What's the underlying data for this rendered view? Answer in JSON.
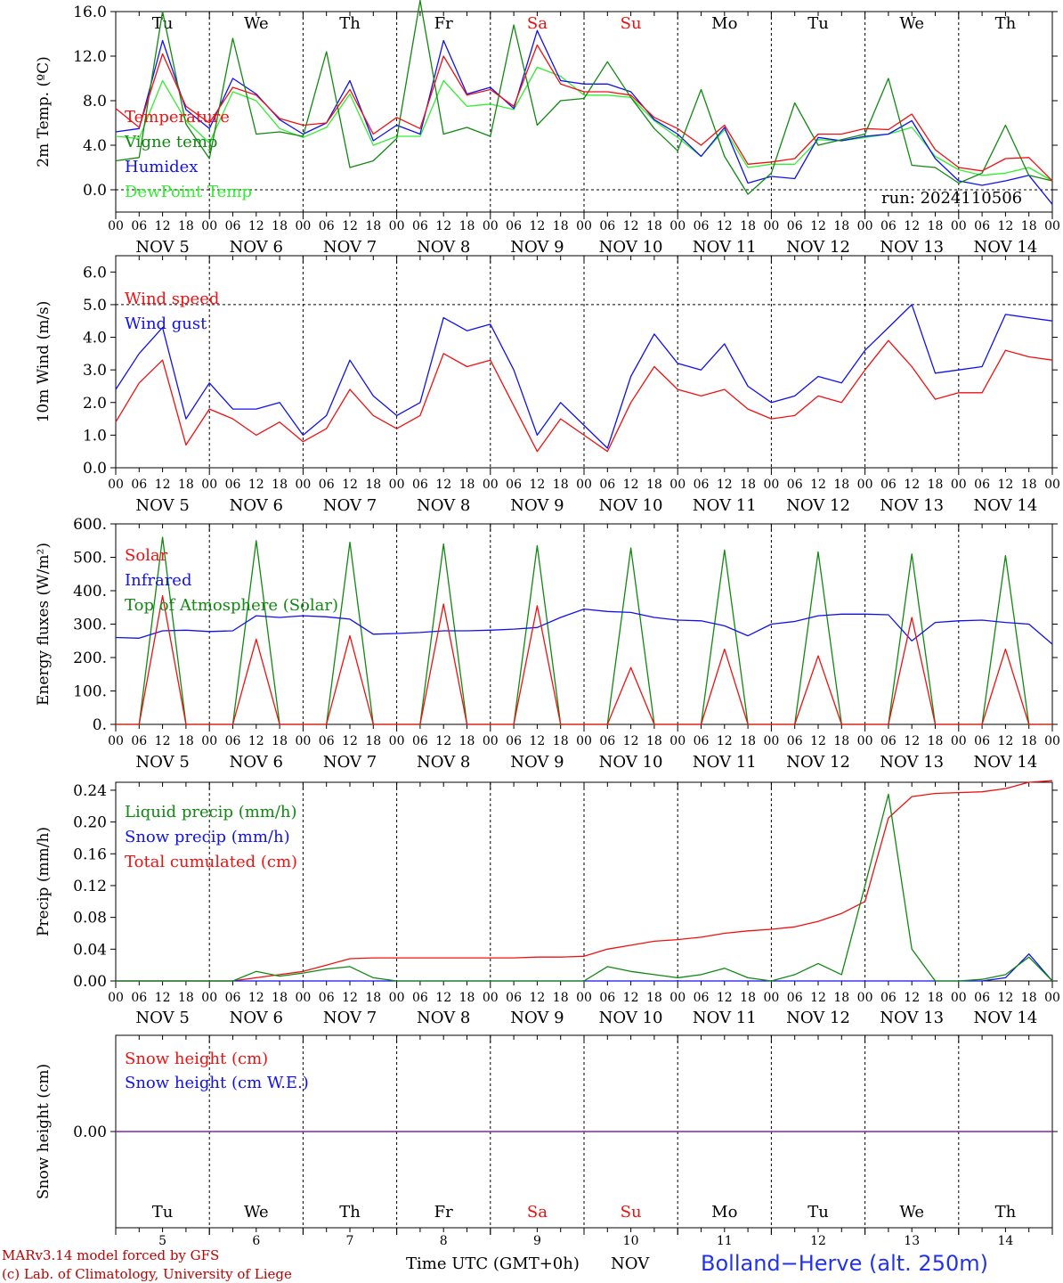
{
  "run_label": "run: 2024110506",
  "station": "Bolland−Herve (alt. 250m)",
  "footer": {
    "model": "MARv3.14 model forced by GFS",
    "credit": "(c) Lab. of Climatology, University of Liege"
  },
  "x_axis_title": "Time UTC (GMT+0h)",
  "x_axis_unit": "NOV",
  "hour_ticks": [
    "00",
    "06",
    "12",
    "18"
  ],
  "days": [
    {
      "abbr": "Tu",
      "date": "NOV  5",
      "num": "5",
      "weekend": false
    },
    {
      "abbr": "We",
      "date": "NOV  6",
      "num": "6",
      "weekend": false
    },
    {
      "abbr": "Th",
      "date": "NOV  7",
      "num": "7",
      "weekend": false
    },
    {
      "abbr": "Fr",
      "date": "NOV  8",
      "num": "8",
      "weekend": false
    },
    {
      "abbr": "Sa",
      "date": "NOV  9",
      "num": "9",
      "weekend": true
    },
    {
      "abbr": "Su",
      "date": "NOV 10",
      "num": "10",
      "weekend": true
    },
    {
      "abbr": "Mo",
      "date": "NOV 11",
      "num": "11",
      "weekend": false
    },
    {
      "abbr": "Tu",
      "date": "NOV 12",
      "num": "12",
      "weekend": false
    },
    {
      "abbr": "We",
      "date": "NOV 13",
      "num": "13",
      "weekend": false
    },
    {
      "abbr": "Th",
      "date": "NOV 14",
      "num": "14",
      "weekend": false
    }
  ],
  "colors": {
    "red": "#ee1111",
    "green": "#118811",
    "blue": "#1111ee",
    "lightgreen": "#33ee33",
    "purple": "#8822aa",
    "weekend": "#ee1111"
  },
  "chart_data": [
    {
      "type": "line",
      "ylabel": "2m Temp. (ºC)",
      "ylim": [
        -2,
        16
      ],
      "yticks": [
        0,
        4,
        8,
        12,
        16
      ],
      "yticklabels": [
        "0.0",
        "4.0",
        "8.0",
        "12.0",
        "16.0"
      ],
      "refline": 0,
      "x_hours": [
        0,
        6,
        12,
        18,
        24,
        30,
        36,
        42,
        48,
        54,
        60,
        66,
        72,
        78,
        84,
        90,
        96,
        102,
        108,
        114,
        120,
        126,
        132,
        138,
        144,
        150,
        156,
        162,
        168,
        174,
        180,
        186,
        192,
        198,
        204,
        210,
        216,
        222,
        228,
        234,
        240
      ],
      "series": [
        {
          "name": "Temperature",
          "color": "red",
          "values": [
            7.3,
            5.6,
            12.2,
            7.5,
            6.0,
            9.2,
            8.5,
            6.4,
            5.8,
            6.0,
            9.0,
            5.0,
            6.5,
            5.5,
            12.0,
            8.5,
            9.0,
            7.5,
            13.0,
            9.5,
            8.8,
            8.8,
            8.5,
            6.5,
            5.5,
            4.0,
            5.8,
            2.3,
            2.5,
            2.8,
            5.0,
            5.0,
            5.5,
            5.4,
            6.8,
            3.6,
            2.0,
            1.7,
            2.8,
            2.9,
            0.8
          ]
        },
        {
          "name": "Vigne temp",
          "color": "green",
          "values": [
            2.6,
            2.9,
            16.0,
            5.9,
            2.8,
            13.6,
            5.0,
            5.2,
            4.8,
            12.4,
            2.0,
            2.6,
            4.6,
            17.0,
            5.0,
            5.6,
            4.8,
            14.8,
            5.8,
            8.0,
            8.2,
            11.5,
            8.3,
            5.5,
            3.5,
            9.0,
            3.0,
            -0.4,
            1.5,
            7.8,
            4.0,
            4.5,
            5.0,
            10.0,
            2.2,
            2.0,
            0.6,
            1.5,
            5.8,
            1.3,
            0.8
          ]
        },
        {
          "name": "Humidex",
          "color": "blue",
          "values": [
            5.2,
            5.5,
            13.4,
            7.2,
            5.5,
            10.0,
            8.6,
            6.3,
            5.0,
            6.0,
            9.8,
            4.4,
            5.8,
            5.0,
            13.4,
            8.6,
            9.2,
            7.3,
            14.3,
            9.8,
            9.5,
            9.5,
            8.8,
            6.3,
            5.0,
            3.0,
            5.6,
            0.6,
            1.2,
            1.0,
            4.7,
            4.4,
            4.8,
            5.0,
            6.2,
            2.8,
            0.8,
            0.4,
            0.8,
            1.3,
            -1.3
          ]
        },
        {
          "name": "DewPoint Temp",
          "color": "lightgreen",
          "values": [
            4.8,
            4.6,
            9.8,
            6.2,
            4.2,
            8.8,
            8.0,
            5.5,
            4.7,
            5.6,
            8.6,
            4.0,
            4.8,
            4.8,
            9.8,
            7.5,
            7.7,
            7.2,
            11.0,
            10.2,
            8.5,
            8.5,
            8.3,
            6.2,
            4.7,
            3.0,
            5.4,
            2.0,
            2.3,
            2.3,
            4.5,
            4.4,
            4.7,
            5.0,
            5.6,
            3.0,
            1.8,
            1.3,
            1.5,
            2.0,
            0.8
          ]
        }
      ]
    },
    {
      "type": "line",
      "ylabel": "10m Wind (m/s)",
      "ylim": [
        0,
        6.5
      ],
      "yticks": [
        0,
        1,
        2,
        3,
        4,
        5,
        6
      ],
      "yticklabels": [
        "0.0",
        "1.0",
        "2.0",
        "3.0",
        "4.0",
        "5.0",
        "6.0"
      ],
      "refline": 5,
      "x_hours": [
        0,
        6,
        12,
        18,
        24,
        30,
        36,
        42,
        48,
        54,
        60,
        66,
        72,
        78,
        84,
        90,
        96,
        102,
        108,
        114,
        120,
        126,
        132,
        138,
        144,
        150,
        156,
        162,
        168,
        174,
        180,
        186,
        192,
        198,
        204,
        210,
        216,
        222,
        228,
        234,
        240
      ],
      "series": [
        {
          "name": "Wind speed",
          "color": "red",
          "values": [
            1.4,
            2.6,
            3.3,
            0.7,
            1.8,
            1.5,
            1.0,
            1.4,
            0.8,
            1.2,
            2.4,
            1.6,
            1.2,
            1.6,
            3.5,
            3.1,
            3.3,
            1.9,
            0.5,
            1.5,
            1.0,
            0.5,
            2.0,
            3.1,
            2.4,
            2.2,
            2.4,
            1.8,
            1.5,
            1.6,
            2.2,
            2.0,
            3.0,
            3.9,
            3.1,
            2.1,
            2.3,
            2.3,
            3.6,
            3.4,
            3.3
          ]
        },
        {
          "name": "Wind gust",
          "color": "blue",
          "values": [
            2.4,
            3.5,
            4.3,
            1.5,
            2.6,
            1.8,
            1.8,
            2.0,
            1.0,
            1.6,
            3.3,
            2.2,
            1.6,
            2.0,
            4.6,
            4.2,
            4.4,
            3.0,
            1.0,
            2.0,
            1.3,
            0.6,
            2.8,
            4.1,
            3.2,
            3.0,
            3.8,
            2.5,
            2.0,
            2.2,
            2.8,
            2.6,
            3.6,
            4.3,
            5.0,
            2.9,
            3.0,
            3.1,
            4.7,
            4.6,
            4.5
          ]
        }
      ]
    },
    {
      "type": "line",
      "ylabel": "Energy fluxes (W/m²)",
      "ylim": [
        0,
        600
      ],
      "yticks": [
        0,
        100,
        200,
        300,
        400,
        500,
        600
      ],
      "yticklabels": [
        "0.",
        "100.",
        "200.",
        "300.",
        "400.",
        "500.",
        "600."
      ],
      "x_hours": [
        0,
        6,
        12,
        18,
        24,
        30,
        36,
        42,
        48,
        54,
        60,
        66,
        72,
        78,
        84,
        90,
        96,
        102,
        108,
        114,
        120,
        126,
        132,
        138,
        144,
        150,
        156,
        162,
        168,
        174,
        180,
        186,
        192,
        198,
        204,
        210,
        216,
        222,
        228,
        234,
        240
      ],
      "series": [
        {
          "name": "Solar",
          "color": "red",
          "values": [
            0,
            0,
            385,
            0,
            0,
            0,
            255,
            0,
            0,
            0,
            265,
            0,
            0,
            0,
            360,
            0,
            0,
            0,
            355,
            0,
            0,
            0,
            170,
            0,
            0,
            0,
            225,
            0,
            0,
            0,
            205,
            0,
            0,
            0,
            320,
            0,
            0,
            0,
            225,
            0,
            0
          ]
        },
        {
          "name": "Infrared",
          "color": "blue",
          "values": [
            260,
            258,
            280,
            282,
            278,
            280,
            325,
            320,
            325,
            322,
            315,
            270,
            272,
            275,
            280,
            280,
            282,
            285,
            290,
            320,
            345,
            338,
            335,
            320,
            312,
            310,
            295,
            265,
            300,
            308,
            325,
            330,
            330,
            328,
            250,
            305,
            310,
            312,
            305,
            300,
            240
          ]
        },
        {
          "name": "Top of Atmosphere (Solar)",
          "color": "green",
          "values": [
            0,
            0,
            560,
            0,
            0,
            0,
            550,
            0,
            0,
            0,
            545,
            0,
            0,
            0,
            540,
            0,
            0,
            0,
            535,
            0,
            0,
            0,
            528,
            0,
            0,
            0,
            522,
            0,
            0,
            0,
            516,
            0,
            0,
            0,
            510,
            0,
            0,
            0,
            505,
            0,
            0
          ]
        }
      ]
    },
    {
      "type": "line",
      "ylabel": "Precip (mm/h)",
      "ylim": [
        0,
        0.25
      ],
      "yticks": [
        0,
        0.04,
        0.08,
        0.12,
        0.16,
        0.2,
        0.24
      ],
      "yticklabels": [
        "0.00",
        "0.04",
        "0.08",
        "0.12",
        "0.16",
        "0.20",
        "0.24"
      ],
      "x_hours": [
        0,
        6,
        12,
        18,
        24,
        30,
        36,
        42,
        48,
        54,
        60,
        66,
        72,
        78,
        84,
        90,
        96,
        102,
        108,
        114,
        120,
        126,
        132,
        138,
        144,
        150,
        156,
        162,
        168,
        174,
        180,
        186,
        192,
        198,
        204,
        210,
        216,
        222,
        228,
        234,
        240
      ],
      "series": [
        {
          "name": "Liquid precip (mm/h)",
          "color": "green",
          "values": [
            0,
            0,
            0,
            0,
            0,
            0,
            0.012,
            0.006,
            0.01,
            0.015,
            0.018,
            0.004,
            0,
            0,
            0,
            0,
            0,
            0,
            0,
            0,
            0,
            0.018,
            0.012,
            0.008,
            0.004,
            0.008,
            0.016,
            0.004,
            0,
            0.008,
            0.022,
            0.008,
            0.12,
            0.235,
            0.04,
            0,
            0,
            0.002,
            0.008,
            0.03,
            0
          ]
        },
        {
          "name": "Snow precip (mm/h)",
          "color": "blue",
          "values": [
            0,
            0,
            0,
            0,
            0,
            0,
            0,
            0,
            0,
            0,
            0,
            0,
            0,
            0,
            0,
            0,
            0,
            0,
            0,
            0,
            0,
            0,
            0,
            0,
            0,
            0,
            0,
            0,
            0,
            0,
            0,
            0,
            0,
            0,
            0,
            0,
            0,
            0,
            0.004,
            0.034,
            0
          ]
        },
        {
          "name": "Total cumulated (cm)",
          "color": "red",
          "values": [
            0,
            0,
            0,
            0,
            0,
            0,
            0.004,
            0.008,
            0.012,
            0.02,
            0.028,
            0.029,
            0.029,
            0.029,
            0.029,
            0.029,
            0.029,
            0.029,
            0.03,
            0.03,
            0.031,
            0.04,
            0.045,
            0.05,
            0.052,
            0.055,
            0.06,
            0.063,
            0.065,
            0.068,
            0.075,
            0.085,
            0.1,
            0.205,
            0.232,
            0.236,
            0.237,
            0.238,
            0.242,
            0.25,
            0.252
          ]
        }
      ]
    },
    {
      "type": "line",
      "ylabel": "Snow height (cm)",
      "ylim": [
        -1,
        1
      ],
      "yticks": [
        0
      ],
      "yticklabels": [
        "0.00"
      ],
      "x_hours": [
        0,
        240
      ],
      "series": [
        {
          "name": "Snow height (cm)",
          "color": "red",
          "values": [
            0,
            0
          ]
        },
        {
          "name": "Snow height (cm W.E.)",
          "color": "blue",
          "values": [
            0,
            0
          ]
        }
      ]
    }
  ]
}
